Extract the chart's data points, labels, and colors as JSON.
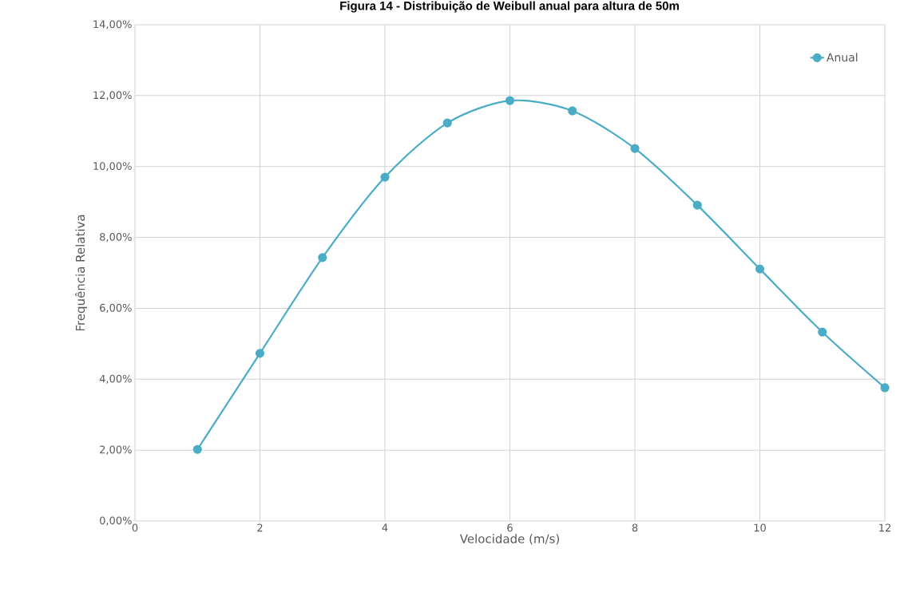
{
  "chart_data": {
    "type": "line",
    "title": "Figura 14 - Distribuição de Weibull anual para altura de 50m",
    "xlabel": "Velocidade (m/s)",
    "ylabel": "Frequência Relativa",
    "x": [
      1,
      2,
      3,
      4,
      5,
      6,
      7,
      8,
      9,
      10,
      11,
      12
    ],
    "series": [
      {
        "name": "Anual",
        "color": "#4bacc6",
        "values": [
          2.02,
          4.73,
          7.43,
          9.7,
          11.23,
          11.86,
          11.57,
          10.51,
          8.91,
          7.11,
          5.33,
          3.76
        ]
      }
    ],
    "xlim": [
      0,
      12
    ],
    "xticks": [
      0,
      2,
      4,
      6,
      8,
      10,
      12
    ],
    "ylim": [
      0,
      14
    ],
    "yticks": [
      {
        "value": 0,
        "label": "0,00%"
      },
      {
        "value": 2,
        "label": "2,00%"
      },
      {
        "value": 4,
        "label": "4,00%"
      },
      {
        "value": 6,
        "label": "6,00%"
      },
      {
        "value": 8,
        "label": "8,00%"
      },
      {
        "value": 10,
        "label": "10,00%"
      },
      {
        "value": 12,
        "label": "12,00%"
      },
      {
        "value": 14,
        "label": "14,00%"
      }
    ],
    "grid": true,
    "legend": "top right",
    "marker": "circle",
    "line_style": "solid"
  }
}
